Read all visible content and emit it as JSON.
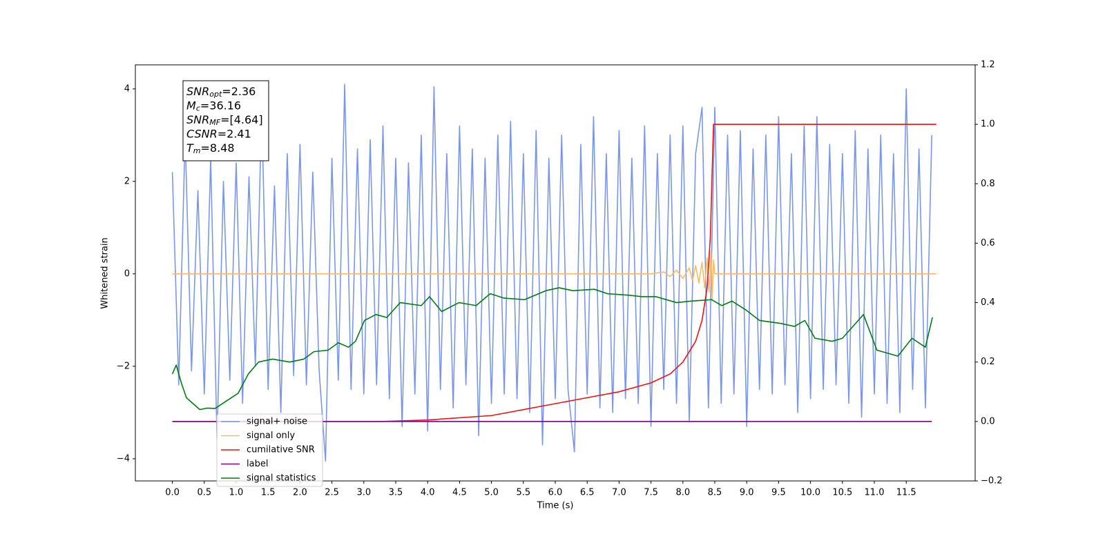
{
  "chart_data": {
    "type": "line",
    "xlabel": "Time (s)",
    "ylabel": "Whitened strain",
    "xlim": [
      -0.58,
      12.58
    ],
    "ylim": [
      -4.48,
      4.52
    ],
    "y2lim": [
      -0.2,
      1.2
    ],
    "xticks": [
      {
        "value": 0,
        "label": "0.0"
      },
      0.5,
      {
        "value": 1,
        "label": "1.0"
      },
      1.5,
      {
        "value": 2,
        "label": "2.0"
      },
      2.5,
      {
        "value": 3,
        "label": "3.0"
      },
      3.5,
      {
        "value": 4,
        "label": "4.0"
      },
      4.5,
      {
        "value": 5,
        "label": "5.0"
      },
      5.5,
      {
        "value": 6,
        "label": "6.0"
      },
      6.5,
      {
        "value": 7,
        "label": "7.0"
      },
      7.5,
      {
        "value": 8,
        "label": "8.0"
      },
      8.5,
      {
        "value": 9,
        "label": "9.0"
      },
      9.5,
      {
        "value": 10,
        "label": "10.0"
      },
      10.5,
      {
        "value": 11,
        "label": "11.0"
      },
      11.5
    ],
    "yticks": [
      {
        "value": -4,
        "label": "−4"
      },
      {
        "value": -2,
        "label": "−2"
      },
      0,
      2,
      4
    ],
    "y2ticks": [
      {
        "value": -0.2,
        "label": "−0.2"
      },
      {
        "value": 0,
        "label": "0.0"
      },
      0.2,
      0.4,
      0.6,
      0.8,
      {
        "value": 1,
        "label": "1.0"
      },
      1.2
    ],
    "legend": "lower left",
    "annotation": [
      {
        "name": "SNR",
        "sub": "opt",
        "rest": "=2.36"
      },
      {
        "name": "M",
        "sub": "c",
        "rest": "=36.16"
      },
      {
        "name": "SNR",
        "sub": "MF",
        "rest": "=[4.64]"
      },
      {
        "name": "CSNR",
        "rest": "=2.41"
      },
      {
        "name": "T",
        "sub": "m",
        "rest": "=8.48"
      }
    ],
    "series": [
      {
        "name": "signal+ noise",
        "color": "#7a96ea",
        "x": [
          0,
          0.1,
          0.2,
          0.3,
          0.4,
          0.5,
          0.6,
          0.7,
          0.8,
          0.9,
          1,
          1.1,
          1.2,
          1.3,
          1.4,
          1.5,
          1.6,
          1.7,
          1.8,
          1.9,
          2,
          2.1,
          2.2,
          2.3,
          2.4,
          2.5,
          2.6,
          2.7,
          2.8,
          2.9,
          3,
          3.1,
          3.2,
          3.3,
          3.4,
          3.5,
          3.6,
          3.7,
          3.8,
          3.9,
          4,
          4.1,
          4.2,
          4.3,
          4.4,
          4.5,
          4.6,
          4.7,
          4.8,
          4.9,
          5,
          5.1,
          5.2,
          5.3,
          5.4,
          5.5,
          5.6,
          5.7,
          5.8,
          5.9,
          6,
          6.1,
          6.2,
          6.3,
          6.4,
          6.5,
          6.6,
          6.7,
          6.8,
          6.9,
          7,
          7.1,
          7.2,
          7.3,
          7.4,
          7.5,
          7.6,
          7.7,
          7.8,
          7.9,
          8,
          8.1,
          8.2,
          8.3,
          8.4,
          8.5,
          8.6,
          8.7,
          8.8,
          8.9,
          9,
          9.1,
          9.2,
          9.3,
          9.4,
          9.5,
          9.6,
          9.7,
          9.8,
          9.9,
          10,
          10.1,
          10.2,
          10.3,
          10.4,
          10.5,
          10.6,
          10.7,
          10.8,
          10.9,
          11,
          11.1,
          11.2,
          11.3,
          11.4,
          11.5,
          11.6,
          11.7,
          11.8,
          11.9
        ],
        "values": [
          2.2,
          -2.4,
          3.0,
          -2.1,
          1.8,
          -2.6,
          2.5,
          -3.6,
          2.0,
          -2.3,
          2.4,
          -2.8,
          2.1,
          -2.0,
          3.6,
          -2.5,
          1.9,
          -3.0,
          2.6,
          -2.2,
          2.8,
          -2.4,
          2.2,
          -2.1,
          -4.05,
          2.5,
          -2.3,
          4.1,
          -2.5,
          2.7,
          -2.6,
          2.9,
          -2.4,
          3.2,
          -2.7,
          2.5,
          -3.3,
          2.4,
          -2.6,
          3.0,
          -3.4,
          4.05,
          -2.5,
          2.6,
          -2.9,
          3.2,
          -2.4,
          2.7,
          -3.5,
          2.5,
          -2.8,
          3.0,
          -2.6,
          3.3,
          -2.7,
          2.6,
          -3.0,
          3.1,
          -3.7,
          2.5,
          -2.7,
          3.0,
          -2.5,
          -3.85,
          2.8,
          -2.6,
          3.4,
          -2.9,
          2.6,
          -3.0,
          3.1,
          -2.7,
          2.5,
          -2.8,
          3.2,
          -3.3,
          2.6,
          -2.5,
          3.0,
          -2.8,
          3.2,
          -3.2,
          2.6,
          3.6,
          -2.9,
          3.6,
          -2.8,
          3.0,
          -2.6,
          3.1,
          -3.3,
          2.7,
          -2.5,
          3.0,
          -2.6,
          3.4,
          -2.4,
          2.6,
          -3.0,
          3.2,
          -2.7,
          3.4,
          -2.5,
          2.8,
          -2.4,
          2.6,
          -2.8,
          3.1,
          -3.1,
          2.7,
          -2.6,
          3.0,
          -2.8,
          2.6,
          -3.0,
          4.0,
          -2.5,
          2.7,
          -2.9,
          3.0
        ]
      },
      {
        "name": "signal only",
        "color": "#f9bb6a",
        "x": [
          0,
          7.5,
          7.7,
          7.8,
          7.9,
          8.0,
          8.1,
          8.15,
          8.2,
          8.25,
          8.3,
          8.34,
          8.38,
          8.41,
          8.44,
          8.46,
          8.48,
          8.5,
          11.97
        ],
        "values": [
          0,
          0,
          0.04,
          -0.06,
          0.08,
          -0.1,
          0.13,
          -0.15,
          0.18,
          -0.2,
          0.25,
          -0.3,
          0.35,
          -0.4,
          0.5,
          -0.55,
          0.3,
          0,
          0
        ]
      },
      {
        "name": "cumilative SNR",
        "color": "#ee1111",
        "axis": "y2",
        "x": [
          0,
          3.3,
          4.0,
          5.0,
          6.0,
          6.5,
          7.0,
          7.5,
          7.8,
          8.0,
          8.2,
          8.3,
          8.38,
          8.43,
          8.46,
          8.48,
          11.97
        ],
        "values": [
          0,
          0,
          0.005,
          0.02,
          0.06,
          0.08,
          0.1,
          0.13,
          0.16,
          0.2,
          0.27,
          0.34,
          0.45,
          0.62,
          0.85,
          1.0,
          1.0
        ]
      },
      {
        "name": "label",
        "color": "#800080",
        "axis": "y2",
        "x": [
          0,
          11.9
        ],
        "values": [
          0,
          0
        ]
      },
      {
        "name": "signal statistics",
        "color": "#007a10",
        "axis": "y2",
        "x": [
          0,
          0.06,
          0.14,
          0.22,
          0.43,
          0.54,
          0.67,
          1.03,
          1.19,
          1.35,
          1.57,
          1.84,
          2.06,
          2.22,
          2.44,
          2.6,
          2.76,
          2.87,
          3.01,
          3.19,
          3.36,
          3.57,
          3.9,
          4.03,
          4.22,
          4.49,
          4.76,
          4.98,
          5.2,
          5.52,
          5.85,
          6.06,
          6.28,
          6.61,
          6.82,
          7.15,
          7.36,
          7.58,
          7.9,
          8.12,
          8.45,
          8.61,
          8.77,
          8.99,
          9.2,
          9.53,
          9.75,
          9.91,
          10.07,
          10.34,
          10.5,
          10.83,
          11.04,
          11.37,
          11.59,
          11.8,
          11.91
        ],
        "values": [
          0.16,
          0.19,
          0.13,
          0.08,
          0.04,
          0.045,
          0.044,
          0.095,
          0.16,
          0.2,
          0.21,
          0.2,
          0.21,
          0.235,
          0.24,
          0.265,
          0.25,
          0.27,
          0.34,
          0.36,
          0.35,
          0.4,
          0.39,
          0.42,
          0.37,
          0.4,
          0.39,
          0.43,
          0.415,
          0.41,
          0.44,
          0.45,
          0.44,
          0.445,
          0.43,
          0.425,
          0.42,
          0.42,
          0.4,
          0.405,
          0.41,
          0.39,
          0.405,
          0.375,
          0.34,
          0.33,
          0.32,
          0.34,
          0.28,
          0.27,
          0.28,
          0.36,
          0.24,
          0.22,
          0.28,
          0.25,
          0.35
        ]
      }
    ]
  }
}
